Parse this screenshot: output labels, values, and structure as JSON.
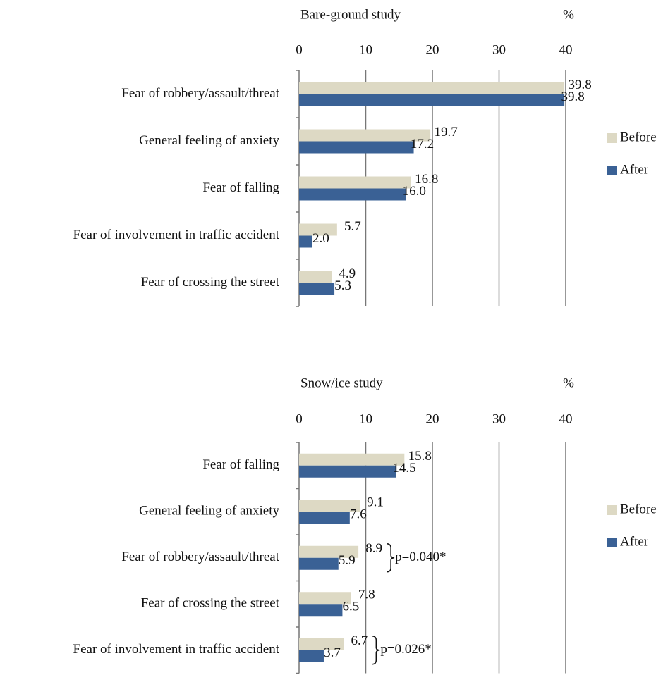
{
  "chart_data": [
    {
      "type": "hbar",
      "title": "Bare-ground study",
      "unit_label": "%",
      "categories": [
        "Fear of robbery/assault/threat",
        "General feeling of anxiety",
        "Fear of falling",
        "Fear of involvement in traffic accident",
        "Fear of crossing  the street"
      ],
      "series": [
        {
          "name": "Before",
          "color": "#ddd9c4",
          "values": [
            39.8,
            19.7,
            16.8,
            5.7,
            4.9
          ],
          "value_labels": [
            "39.8",
            "19.7",
            "16.8",
            "5.7",
            "4.9"
          ]
        },
        {
          "name": "After",
          "color": "#3a6195",
          "values": [
            39.8,
            17.2,
            16.0,
            2.0,
            5.3
          ],
          "value_labels": [
            "39.8",
            "17.2",
            "16.0",
            "2.0",
            "5.3"
          ]
        }
      ],
      "xlim": [
        0,
        40
      ],
      "xticks": [
        0,
        10,
        20,
        30,
        40
      ],
      "grid": true,
      "legend": "right"
    },
    {
      "type": "hbar",
      "title": "Snow/ice study",
      "unit_label": "%",
      "categories": [
        "Fear of falling",
        "General feeling of anxiety",
        "Fear of robbery/assault/threat",
        "Fear of crossing  the street",
        "Fear of involvement in traffic accident"
      ],
      "series": [
        {
          "name": "Before",
          "color": "#ddd9c4",
          "values": [
            15.8,
            9.1,
            8.9,
            7.8,
            6.7
          ],
          "value_labels": [
            "15.8",
            "9.1",
            "8.9",
            "7.8",
            "6.7"
          ]
        },
        {
          "name": "After",
          "color": "#3a6195",
          "values": [
            14.5,
            7.6,
            5.9,
            6.5,
            3.7
          ],
          "value_labels": [
            "14.5",
            "7.6",
            "5.9",
            "6.5",
            "3.7"
          ]
        }
      ],
      "annotations": [
        {
          "category": "Fear of robbery/assault/threat",
          "text": "p=0.040*"
        },
        {
          "category": "Fear of involvement in traffic accident",
          "text": "p=0.026*"
        }
      ],
      "xlim": [
        0,
        40
      ],
      "xticks": [
        0,
        10,
        20,
        30,
        40
      ],
      "grid": true,
      "legend": "right"
    }
  ]
}
